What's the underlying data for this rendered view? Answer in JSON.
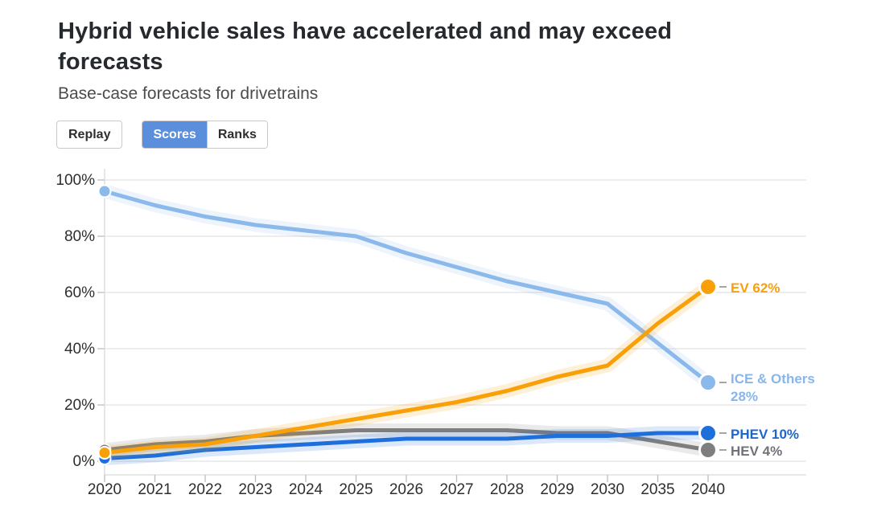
{
  "header": {
    "title": "Hybrid vehicle sales have accelerated and may exceed forecasts",
    "subtitle": "Base-case forecasts for drivetrains"
  },
  "controls": {
    "replay_label": "Replay",
    "view_tabs": [
      {
        "label": "Scores",
        "active": true
      },
      {
        "label": "Ranks",
        "active": false
      }
    ]
  },
  "colors": {
    "tab_active_bg": "#5b8edb",
    "tab_active_text": "#ffffff",
    "grid": "#e2e2e2",
    "axis": "#d9d9d9",
    "tick_text": "#2e2e2e",
    "leader": "#a5a5a5"
  },
  "chart_data": {
    "type": "line",
    "title": "Hybrid vehicle sales have accelerated and may exceed forecasts",
    "subtitle": "Base-case forecasts for drivetrains",
    "x": [
      "2020",
      "2021",
      "2022",
      "2023",
      "2024",
      "2025",
      "2026",
      "2027",
      "2028",
      "2029",
      "2030",
      "2035",
      "2040"
    ],
    "y_ticks": [
      {
        "label": "0%",
        "value": 0
      },
      {
        "label": "20%",
        "value": 20
      },
      {
        "label": "40%",
        "value": 40
      },
      {
        "label": "60%",
        "value": 60
      },
      {
        "label": "80%",
        "value": 80
      },
      {
        "label": "100%",
        "value": 100
      }
    ],
    "ylim": [
      0,
      100
    ],
    "grid": true,
    "legend_position": "end-of-line-labels",
    "series": [
      {
        "name": "ICE & Others",
        "color": "#8cb9ec",
        "label_color": "#8ab5e9",
        "label_lines": [
          "ICE & Others",
          "28%"
        ],
        "end_value": 28,
        "values": [
          96,
          91,
          87,
          84,
          82,
          80,
          74,
          69,
          64,
          60,
          56,
          42,
          28
        ]
      },
      {
        "name": "HEV",
        "color": "#7e7e7e",
        "label_color": "#6f7377",
        "label_lines": [
          "HEV 4%"
        ],
        "end_value": 4,
        "values": [
          4,
          6,
          7,
          9,
          10,
          11,
          11,
          11,
          11,
          10,
          10,
          7,
          4
        ]
      },
      {
        "name": "PHEV",
        "color": "#1e6fdc",
        "label_color": "#1b66d1",
        "label_lines": [
          "PHEV 10%"
        ],
        "end_value": 10,
        "values": [
          1,
          2,
          4,
          5,
          6,
          7,
          8,
          8,
          8,
          9,
          9,
          10,
          10
        ]
      },
      {
        "name": "EV",
        "color": "#f9a008",
        "label_color": "#f9a008",
        "label_lines": [
          "EV 62%"
        ],
        "end_value": 62,
        "values": [
          3,
          5,
          6,
          9,
          12,
          15,
          18,
          21,
          25,
          30,
          34,
          49,
          62
        ]
      }
    ]
  }
}
